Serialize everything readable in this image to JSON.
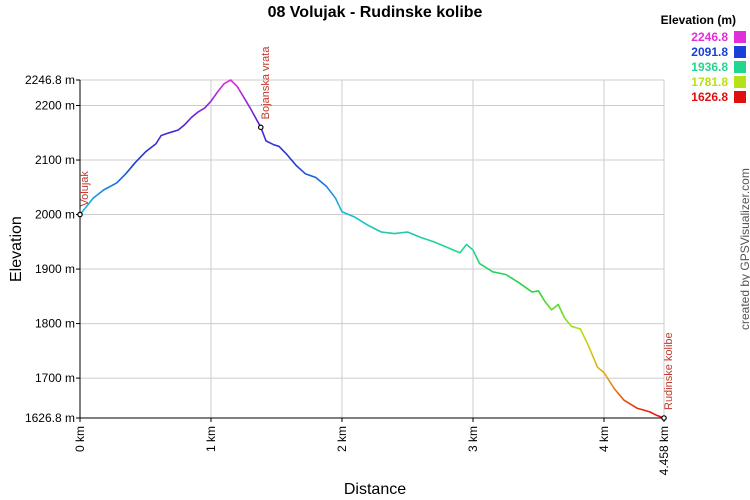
{
  "chart_data": {
    "type": "line",
    "title": "08 Volujak - Rudinske kolibe",
    "xlabel": "Distance",
    "ylabel": "Elevation",
    "xlim": [
      0,
      4.458
    ],
    "ylim": [
      1626.8,
      2246.8
    ],
    "x_ticks": [
      {
        "value": 0,
        "label": "0 km"
      },
      {
        "value": 1,
        "label": "1 km"
      },
      {
        "value": 2,
        "label": "2 km"
      },
      {
        "value": 3,
        "label": "3 km"
      },
      {
        "value": 4,
        "label": "4 km"
      },
      {
        "value": 4.458,
        "label": "4.458 km"
      }
    ],
    "y_ticks": [
      {
        "value": 1626.8,
        "label": "1626.8 m"
      },
      {
        "value": 1700,
        "label": "1700 m"
      },
      {
        "value": 1800,
        "label": "1800 m"
      },
      {
        "value": 1900,
        "label": "1900 m"
      },
      {
        "value": 2000,
        "label": "2000 m"
      },
      {
        "value": 2100,
        "label": "2100 m"
      },
      {
        "value": 2200,
        "label": "2200 m"
      },
      {
        "value": 2246.8,
        "label": "2246.8 m"
      }
    ],
    "grid": true,
    "legend": {
      "title": "Elevation (m)",
      "placement": "top-right",
      "items": [
        {
          "label": "2246.8",
          "color": "#e02ed8"
        },
        {
          "label": "2091.8",
          "color": "#1a3fd6"
        },
        {
          "label": "1936.8",
          "color": "#22d68f"
        },
        {
          "label": "1781.8",
          "color": "#b8e016"
        },
        {
          "label": "1626.8",
          "color": "#e01010"
        }
      ]
    },
    "gradient": [
      {
        "elevation": 1626.8,
        "color": "#e01010"
      },
      {
        "elevation": 1704.3,
        "color": "#e8a614"
      },
      {
        "elevation": 1781.8,
        "color": "#b8e016"
      },
      {
        "elevation": 1859.3,
        "color": "#2ad43a"
      },
      {
        "elevation": 1936.8,
        "color": "#22d68f"
      },
      {
        "elevation": 2014.3,
        "color": "#18b4e6"
      },
      {
        "elevation": 2091.8,
        "color": "#1a3fd6"
      },
      {
        "elevation": 2169.3,
        "color": "#5a1ed8"
      },
      {
        "elevation": 2246.8,
        "color": "#e02ed8"
      }
    ],
    "series": [
      {
        "points": [
          [
            0.0,
            2000
          ],
          [
            0.05,
            2015
          ],
          [
            0.1,
            2030
          ],
          [
            0.18,
            2045
          ],
          [
            0.28,
            2058
          ],
          [
            0.35,
            2075
          ],
          [
            0.42,
            2095
          ],
          [
            0.5,
            2115
          ],
          [
            0.58,
            2130
          ],
          [
            0.62,
            2145
          ],
          [
            0.68,
            2150
          ],
          [
            0.75,
            2155
          ],
          [
            0.8,
            2165
          ],
          [
            0.85,
            2178
          ],
          [
            0.9,
            2188
          ],
          [
            0.95,
            2195
          ],
          [
            1.0,
            2208
          ],
          [
            1.05,
            2225
          ],
          [
            1.1,
            2240
          ],
          [
            1.15,
            2246.8
          ],
          [
            1.2,
            2235
          ],
          [
            1.25,
            2215
          ],
          [
            1.3,
            2195
          ],
          [
            1.38,
            2160
          ],
          [
            1.42,
            2135
          ],
          [
            1.48,
            2128
          ],
          [
            1.52,
            2125
          ],
          [
            1.58,
            2110
          ],
          [
            1.65,
            2090
          ],
          [
            1.72,
            2075
          ],
          [
            1.8,
            2068
          ],
          [
            1.88,
            2052
          ],
          [
            1.95,
            2030
          ],
          [
            2.0,
            2005
          ],
          [
            2.1,
            1995
          ],
          [
            2.2,
            1980
          ],
          [
            2.3,
            1968
          ],
          [
            2.4,
            1965
          ],
          [
            2.5,
            1968
          ],
          [
            2.6,
            1958
          ],
          [
            2.7,
            1950
          ],
          [
            2.8,
            1940
          ],
          [
            2.9,
            1930
          ],
          [
            2.95,
            1945
          ],
          [
            3.0,
            1935
          ],
          [
            3.05,
            1910
          ],
          [
            3.15,
            1895
          ],
          [
            3.25,
            1890
          ],
          [
            3.35,
            1875
          ],
          [
            3.45,
            1858
          ],
          [
            3.5,
            1860
          ],
          [
            3.55,
            1840
          ],
          [
            3.6,
            1825
          ],
          [
            3.65,
            1835
          ],
          [
            3.7,
            1810
          ],
          [
            3.75,
            1795
          ],
          [
            3.82,
            1790
          ],
          [
            3.88,
            1760
          ],
          [
            3.95,
            1720
          ],
          [
            4.0,
            1710
          ],
          [
            4.08,
            1680
          ],
          [
            4.15,
            1660
          ],
          [
            4.25,
            1645
          ],
          [
            4.35,
            1638
          ],
          [
            4.4,
            1632
          ],
          [
            4.458,
            1626.8
          ]
        ]
      }
    ],
    "annotations": [
      {
        "label": "Volujak",
        "x": 0.0,
        "y": 2000
      },
      {
        "label": "Bojanska vrata",
        "x": 1.38,
        "y": 2160
      },
      {
        "label": "Rudinske kolibe",
        "x": 4.458,
        "y": 1626.8
      }
    ]
  },
  "credit": "created by GPSVisualizer.com"
}
